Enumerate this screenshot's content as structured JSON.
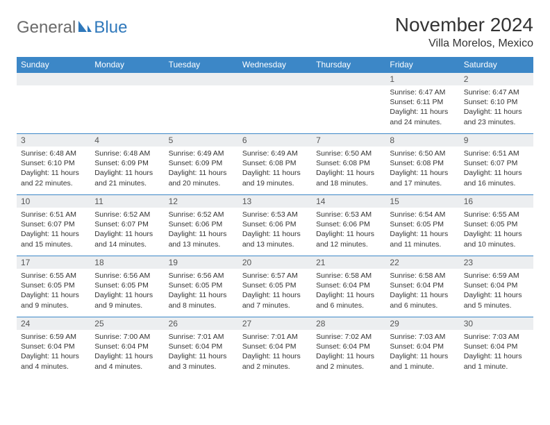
{
  "logo": {
    "text1": "General",
    "text2": "Blue"
  },
  "title": "November 2024",
  "location": "Villa Morelos, Mexico",
  "theme": {
    "header_bg": "#3c87c7",
    "header_fg": "#ffffff",
    "daynum_bg": "#eceef0",
    "border": "#3c87c7",
    "page_bg": "#ffffff",
    "logo_gray": "#6a6a6a",
    "logo_blue": "#2f78bb"
  },
  "weekday_labels": [
    "Sunday",
    "Monday",
    "Tuesday",
    "Wednesday",
    "Thursday",
    "Friday",
    "Saturday"
  ],
  "weeks": [
    [
      {
        "n": "",
        "lines": []
      },
      {
        "n": "",
        "lines": []
      },
      {
        "n": "",
        "lines": []
      },
      {
        "n": "",
        "lines": []
      },
      {
        "n": "",
        "lines": []
      },
      {
        "n": "1",
        "lines": [
          "Sunrise: 6:47 AM",
          "Sunset: 6:11 PM",
          "Daylight: 11 hours and 24 minutes."
        ]
      },
      {
        "n": "2",
        "lines": [
          "Sunrise: 6:47 AM",
          "Sunset: 6:10 PM",
          "Daylight: 11 hours and 23 minutes."
        ]
      }
    ],
    [
      {
        "n": "3",
        "lines": [
          "Sunrise: 6:48 AM",
          "Sunset: 6:10 PM",
          "Daylight: 11 hours and 22 minutes."
        ]
      },
      {
        "n": "4",
        "lines": [
          "Sunrise: 6:48 AM",
          "Sunset: 6:09 PM",
          "Daylight: 11 hours and 21 minutes."
        ]
      },
      {
        "n": "5",
        "lines": [
          "Sunrise: 6:49 AM",
          "Sunset: 6:09 PM",
          "Daylight: 11 hours and 20 minutes."
        ]
      },
      {
        "n": "6",
        "lines": [
          "Sunrise: 6:49 AM",
          "Sunset: 6:08 PM",
          "Daylight: 11 hours and 19 minutes."
        ]
      },
      {
        "n": "7",
        "lines": [
          "Sunrise: 6:50 AM",
          "Sunset: 6:08 PM",
          "Daylight: 11 hours and 18 minutes."
        ]
      },
      {
        "n": "8",
        "lines": [
          "Sunrise: 6:50 AM",
          "Sunset: 6:08 PM",
          "Daylight: 11 hours and 17 minutes."
        ]
      },
      {
        "n": "9",
        "lines": [
          "Sunrise: 6:51 AM",
          "Sunset: 6:07 PM",
          "Daylight: 11 hours and 16 minutes."
        ]
      }
    ],
    [
      {
        "n": "10",
        "lines": [
          "Sunrise: 6:51 AM",
          "Sunset: 6:07 PM",
          "Daylight: 11 hours and 15 minutes."
        ]
      },
      {
        "n": "11",
        "lines": [
          "Sunrise: 6:52 AM",
          "Sunset: 6:07 PM",
          "Daylight: 11 hours and 14 minutes."
        ]
      },
      {
        "n": "12",
        "lines": [
          "Sunrise: 6:52 AM",
          "Sunset: 6:06 PM",
          "Daylight: 11 hours and 13 minutes."
        ]
      },
      {
        "n": "13",
        "lines": [
          "Sunrise: 6:53 AM",
          "Sunset: 6:06 PM",
          "Daylight: 11 hours and 13 minutes."
        ]
      },
      {
        "n": "14",
        "lines": [
          "Sunrise: 6:53 AM",
          "Sunset: 6:06 PM",
          "Daylight: 11 hours and 12 minutes."
        ]
      },
      {
        "n": "15",
        "lines": [
          "Sunrise: 6:54 AM",
          "Sunset: 6:05 PM",
          "Daylight: 11 hours and 11 minutes."
        ]
      },
      {
        "n": "16",
        "lines": [
          "Sunrise: 6:55 AM",
          "Sunset: 6:05 PM",
          "Daylight: 11 hours and 10 minutes."
        ]
      }
    ],
    [
      {
        "n": "17",
        "lines": [
          "Sunrise: 6:55 AM",
          "Sunset: 6:05 PM",
          "Daylight: 11 hours and 9 minutes."
        ]
      },
      {
        "n": "18",
        "lines": [
          "Sunrise: 6:56 AM",
          "Sunset: 6:05 PM",
          "Daylight: 11 hours and 9 minutes."
        ]
      },
      {
        "n": "19",
        "lines": [
          "Sunrise: 6:56 AM",
          "Sunset: 6:05 PM",
          "Daylight: 11 hours and 8 minutes."
        ]
      },
      {
        "n": "20",
        "lines": [
          "Sunrise: 6:57 AM",
          "Sunset: 6:05 PM",
          "Daylight: 11 hours and 7 minutes."
        ]
      },
      {
        "n": "21",
        "lines": [
          "Sunrise: 6:58 AM",
          "Sunset: 6:04 PM",
          "Daylight: 11 hours and 6 minutes."
        ]
      },
      {
        "n": "22",
        "lines": [
          "Sunrise: 6:58 AM",
          "Sunset: 6:04 PM",
          "Daylight: 11 hours and 6 minutes."
        ]
      },
      {
        "n": "23",
        "lines": [
          "Sunrise: 6:59 AM",
          "Sunset: 6:04 PM",
          "Daylight: 11 hours and 5 minutes."
        ]
      }
    ],
    [
      {
        "n": "24",
        "lines": [
          "Sunrise: 6:59 AM",
          "Sunset: 6:04 PM",
          "Daylight: 11 hours and 4 minutes."
        ]
      },
      {
        "n": "25",
        "lines": [
          "Sunrise: 7:00 AM",
          "Sunset: 6:04 PM",
          "Daylight: 11 hours and 4 minutes."
        ]
      },
      {
        "n": "26",
        "lines": [
          "Sunrise: 7:01 AM",
          "Sunset: 6:04 PM",
          "Daylight: 11 hours and 3 minutes."
        ]
      },
      {
        "n": "27",
        "lines": [
          "Sunrise: 7:01 AM",
          "Sunset: 6:04 PM",
          "Daylight: 11 hours and 2 minutes."
        ]
      },
      {
        "n": "28",
        "lines": [
          "Sunrise: 7:02 AM",
          "Sunset: 6:04 PM",
          "Daylight: 11 hours and 2 minutes."
        ]
      },
      {
        "n": "29",
        "lines": [
          "Sunrise: 7:03 AM",
          "Sunset: 6:04 PM",
          "Daylight: 11 hours and 1 minute."
        ]
      },
      {
        "n": "30",
        "lines": [
          "Sunrise: 7:03 AM",
          "Sunset: 6:04 PM",
          "Daylight: 11 hours and 1 minute."
        ]
      }
    ]
  ]
}
